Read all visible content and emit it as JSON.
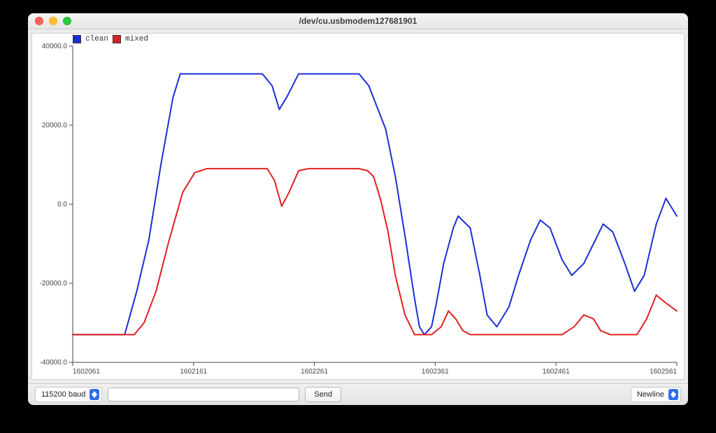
{
  "window": {
    "title": "/dev/cu.usbmodem127681901",
    "traffic_colors": {
      "close": "#ff5f57",
      "min": "#ffbd2e",
      "max": "#28c840"
    }
  },
  "bottombar": {
    "baud_selected": "115200 baud",
    "input_value": "",
    "send_label": "Send",
    "line_ending_selected": "Newline"
  },
  "chart": {
    "type": "line",
    "background_color": "#ffffff",
    "grid": false,
    "axis_color": "#444444",
    "tick_fontsize": 10,
    "tick_color": "#444444",
    "xlim": [
      1602061,
      1602561
    ],
    "ylim": [
      -40000,
      40000
    ],
    "yticks": [
      -40000,
      -20000,
      0,
      20000,
      40000
    ],
    "ytick_labels": [
      "-40000.0",
      "-20000.0",
      "0.0",
      "20000.0",
      "40000.0"
    ],
    "xticks": [
      1602061,
      1602161,
      1602261,
      1602361,
      1602461,
      1602561
    ],
    "xtick_labels": [
      "1602061",
      "1602161",
      "1602261",
      "1602361",
      "1602461",
      "1602561"
    ],
    "line_width": 2,
    "legend": [
      {
        "label": "clean",
        "color": "#1a2fd6"
      },
      {
        "label": "mixed",
        "color": "#e02020"
      }
    ],
    "series": [
      {
        "name": "clean",
        "color": "#1a2fd6",
        "x": [
          1602061,
          1602090,
          1602104,
          1602114,
          1602124,
          1602134,
          1602144,
          1602150,
          1602158,
          1602218,
          1602226,
          1602232,
          1602238,
          1602248,
          1602258,
          1602290,
          1602296,
          1602298,
          1602306,
          1602320,
          1602328,
          1602336,
          1602344,
          1602348,
          1602352,
          1602358,
          1602362,
          1602368,
          1602376,
          1602380,
          1602390,
          1602398,
          1602404,
          1602412,
          1602422,
          1602430,
          1602440,
          1602448,
          1602456,
          1602466,
          1602474,
          1602484,
          1602492,
          1602500,
          1602508,
          1602518,
          1602526,
          1602534,
          1602544,
          1602552,
          1602561
        ],
        "y": [
          -33000,
          -33000,
          -33000,
          -22000,
          -9000,
          10000,
          27000,
          33000,
          33000,
          33000,
          30000,
          24000,
          27000,
          33000,
          33000,
          33000,
          33000,
          33000,
          30000,
          19000,
          7000,
          -8000,
          -24000,
          -31000,
          -33000,
          -31000,
          -25000,
          -15000,
          -6000,
          -3000,
          -6000,
          -18000,
          -28000,
          -31000,
          -26000,
          -18000,
          -9000,
          -4000,
          -6000,
          -14000,
          -18000,
          -15000,
          -10000,
          -5000,
          -7000,
          -15000,
          -22000,
          -18000,
          -5000,
          1500,
          -3000
        ]
      },
      {
        "name": "mixed",
        "color": "#e02020",
        "x": [
          1602061,
          1602100,
          1602112,
          1602120,
          1602130,
          1602140,
          1602152,
          1602162,
          1602172,
          1602222,
          1602228,
          1602234,
          1602240,
          1602248,
          1602256,
          1602266,
          1602298,
          1602305,
          1602310,
          1602316,
          1602322,
          1602328,
          1602336,
          1602344,
          1602350,
          1602358,
          1602366,
          1602372,
          1602378,
          1602384,
          1602390,
          1602436,
          1602446,
          1602466,
          1602476,
          1602484,
          1602492,
          1602498,
          1602506,
          1602528,
          1602536,
          1602544,
          1602552,
          1602561
        ],
        "y": [
          -33000,
          -33000,
          -33000,
          -30000,
          -22000,
          -10000,
          3000,
          8000,
          9000,
          9000,
          6000,
          -500,
          3000,
          8500,
          9000,
          9000,
          9000,
          8500,
          7000,
          1000,
          -7000,
          -18000,
          -28000,
          -33000,
          -33000,
          -33000,
          -31000,
          -27000,
          -29000,
          -32000,
          -33000,
          -33000,
          -33000,
          -33000,
          -31000,
          -28000,
          -29000,
          -32000,
          -33000,
          -33000,
          -29000,
          -23000,
          -25000,
          -27000
        ]
      }
    ]
  }
}
